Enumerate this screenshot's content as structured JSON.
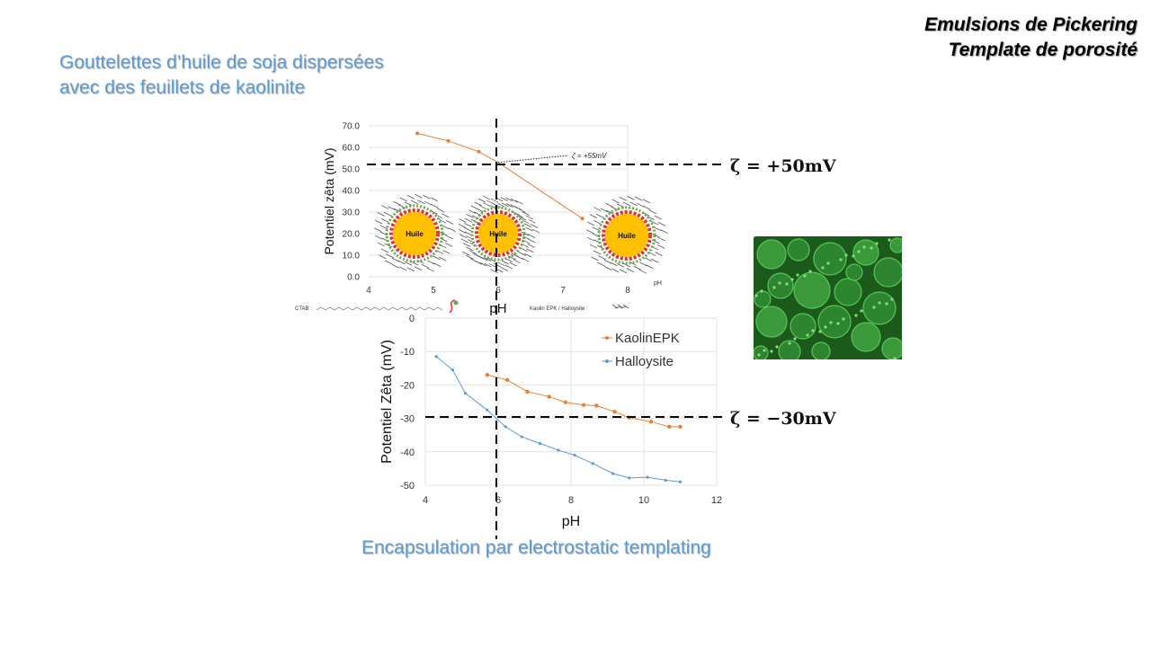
{
  "header": {
    "line1": "Emulsions de Pickering",
    "line2": "Template de porosité"
  },
  "subtitle": {
    "line1": "Gouttelettes d’huile de soja dispersées",
    "line2": "avec des feuillets de kaolinite"
  },
  "caption": "Encapsulation par electrostatic templating",
  "zeta_labels": {
    "top": "ζ = +50mV",
    "bottom": "ζ = −30mV"
  },
  "colors": {
    "kaolin": "#ed7d31",
    "halloysite": "#5b9bd5",
    "accent_text": "#5b9bd5",
    "oil": "#ffc000"
  },
  "droplets": {
    "label": "Huile",
    "ctab_label": "CTAB :",
    "kaolin_label": "Kaolin EPK / Halloysite :"
  },
  "micrograph": {
    "icon": "fluorescence-micrograph"
  },
  "chart_data": [
    {
      "type": "line",
      "ylabel": "Potentiel zêta (mV)",
      "xlabel": "pH",
      "inner_xlabel": "pH",
      "annotation": "ζ = +55mV",
      "xlim": [
        4,
        8
      ],
      "ylim": [
        0,
        70
      ],
      "xticks": [
        "4",
        "5",
        "6",
        "7",
        "8"
      ],
      "yticks": [
        "0.0",
        "10.0",
        "20.0",
        "30.0",
        "40.0",
        "50.0",
        "60.0",
        "70.0"
      ],
      "series": [
        {
          "x": [
            4.75,
            5.23,
            5.7,
            6.0,
            7.3
          ],
          "y": [
            66.5,
            63,
            58,
            53,
            27
          ]
        }
      ],
      "grid": true,
      "crosshair": {
        "x": 6,
        "y": 52
      }
    },
    {
      "type": "line",
      "ylabel": "Potentiel Zêta (mV)",
      "xlabel": "pH",
      "xlim": [
        4,
        12
      ],
      "ylim": [
        -50,
        0
      ],
      "xticks": [
        "4",
        "6",
        "8",
        "10",
        "12"
      ],
      "yticks": [
        "0",
        "-10",
        "-20",
        "-30",
        "-40",
        "-50"
      ],
      "legend": "top-right",
      "series": [
        {
          "name": "KaolinEPK",
          "x": [
            5.7,
            6.25,
            6.8,
            7.4,
            7.85,
            8.35,
            8.7,
            9.2,
            9.6,
            10.2,
            10.7,
            11.0
          ],
          "y": [
            -17,
            -18.5,
            -22,
            -23.5,
            -25.2,
            -26,
            -26.2,
            -28,
            -29.8,
            -31,
            -32.5,
            -32.5
          ]
        },
        {
          "name": "Halloysite",
          "x": [
            4.3,
            4.75,
            5.1,
            5.7,
            6.2,
            6.65,
            7.15,
            7.65,
            8.1,
            8.6,
            9.15,
            9.6,
            10.1,
            10.6,
            11.0
          ],
          "y": [
            -11.5,
            -15.5,
            -22.5,
            -27.5,
            -32.5,
            -35.5,
            -37.5,
            -39.5,
            -41,
            -43.5,
            -46.5,
            -47.8,
            -47.6,
            -48.5,
            -49
          ]
        }
      ],
      "grid": true,
      "crosshair": {
        "x": 6,
        "y": -30
      }
    }
  ]
}
